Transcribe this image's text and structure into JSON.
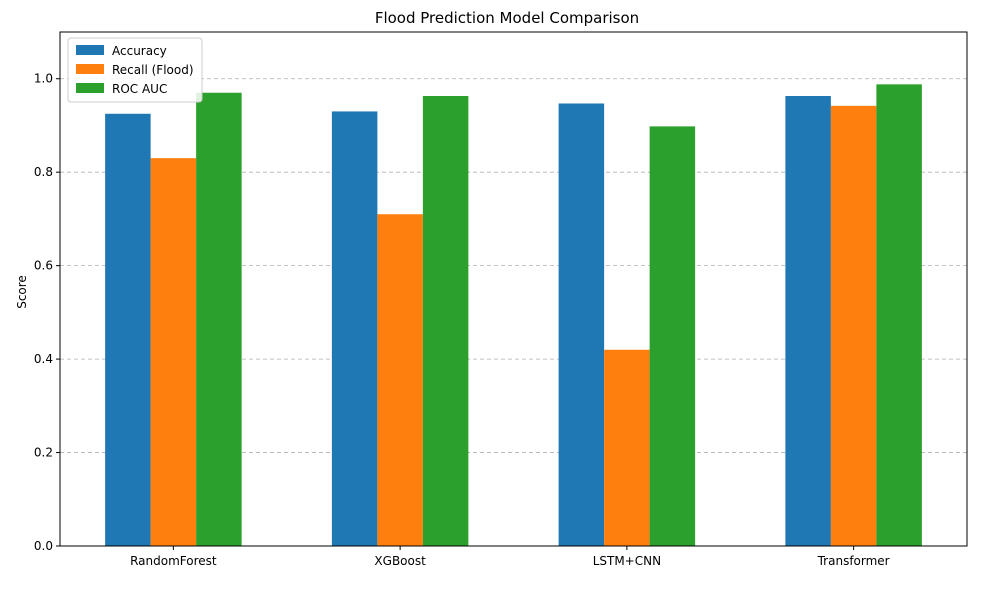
{
  "chart_data": {
    "type": "bar",
    "title": "Flood Prediction Model Comparison",
    "xlabel": "",
    "ylabel": "Score",
    "categories": [
      "RandomForest",
      "XGBoost",
      "LSTM+CNN",
      "Transformer"
    ],
    "series": [
      {
        "name": "Accuracy",
        "color": "#1f77b4",
        "values": [
          0.925,
          0.93,
          0.947,
          0.963
        ]
      },
      {
        "name": "Recall (Flood)",
        "color": "#ff7f0e",
        "values": [
          0.83,
          0.71,
          0.42,
          0.942
        ]
      },
      {
        "name": "ROC AUC",
        "color": "#2ca02c",
        "values": [
          0.97,
          0.963,
          0.898,
          0.988
        ]
      }
    ],
    "ylim": [
      0,
      1.1
    ],
    "yticks": [
      0.0,
      0.2,
      0.4,
      0.6,
      0.8,
      1.0
    ],
    "ytick_labels": [
      "0.0",
      "0.2",
      "0.4",
      "0.6",
      "0.8",
      "1.0"
    ],
    "grid": {
      "y": true,
      "style": "dashed",
      "color": "#b0b0b0"
    },
    "legend_position": "top-left"
  }
}
